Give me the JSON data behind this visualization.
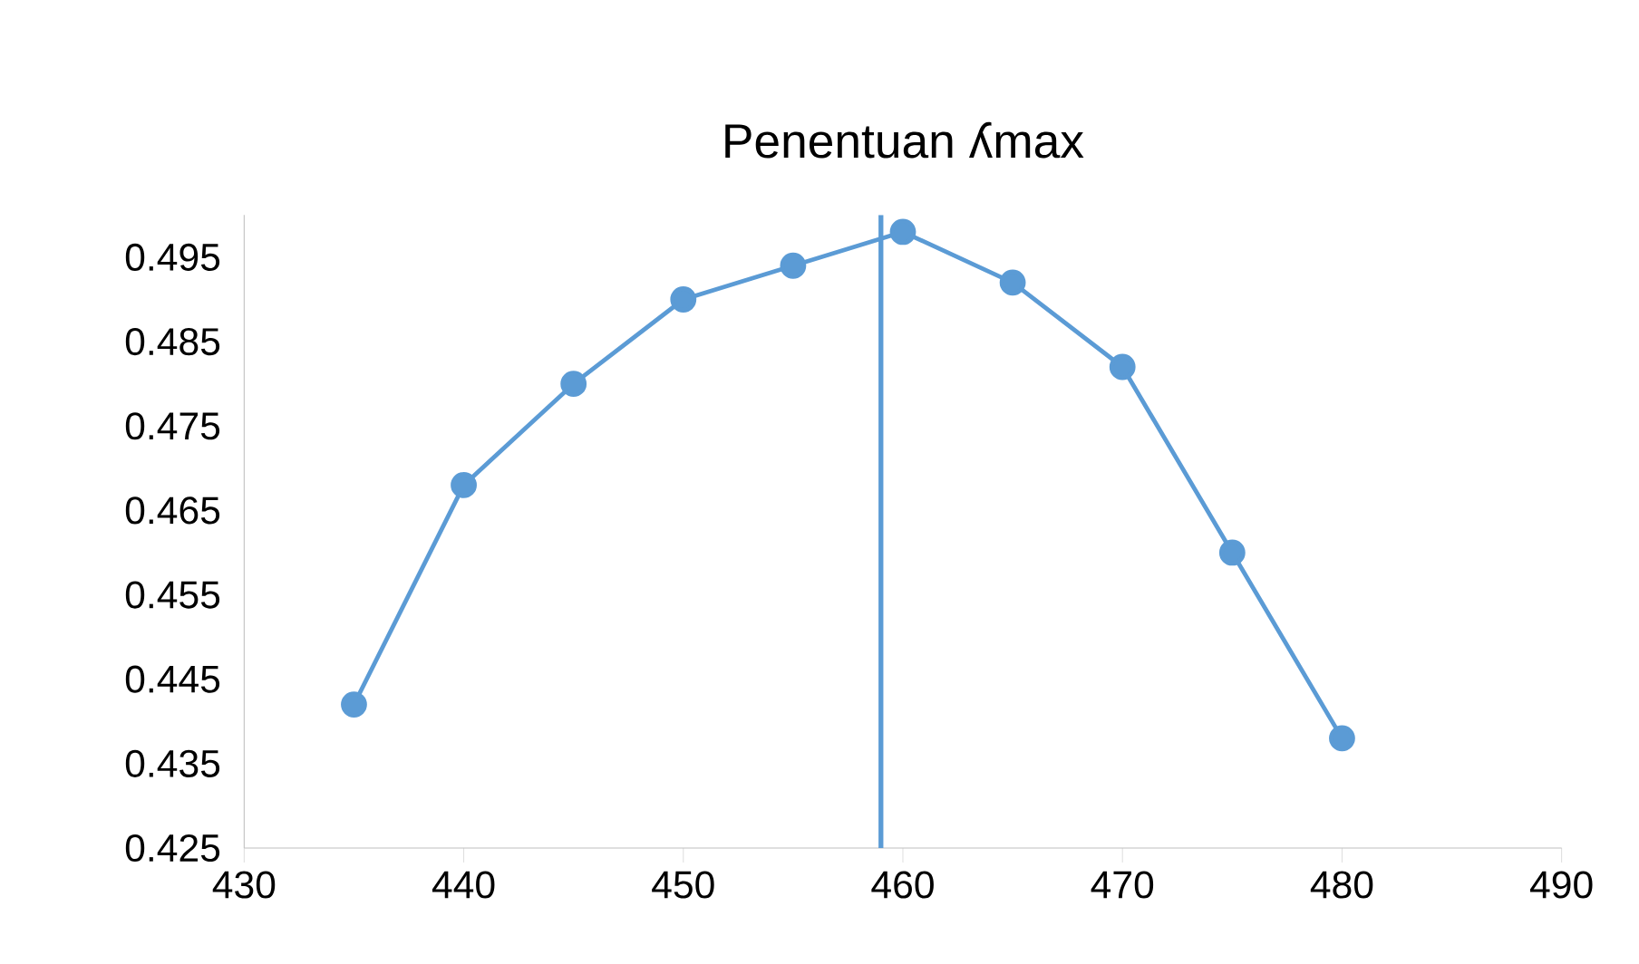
{
  "chart_data": {
    "type": "line",
    "title": "Penentuan ʎmax",
    "x": [
      435,
      440,
      445,
      450,
      455,
      460,
      465,
      470,
      475,
      480
    ],
    "series": [
      {
        "color": "#5b9bd5",
        "values": [
          0.442,
          0.468,
          0.48,
          0.49,
          0.494,
          0.498,
          0.492,
          0.482,
          0.46,
          0.438
        ]
      }
    ],
    "xlim": [
      430,
      490
    ],
    "xticks": [
      430,
      440,
      450,
      460,
      470,
      480,
      490
    ],
    "ylim": [
      0.425,
      0.5
    ],
    "yticks": [
      0.425,
      0.435,
      0.445,
      0.455,
      0.465,
      0.475,
      0.485,
      0.495
    ],
    "ref_lines": [
      {
        "axis": "x",
        "value": 459,
        "color": "#5b9bd5"
      }
    ],
    "marker": "circle",
    "line_style": "solid"
  }
}
